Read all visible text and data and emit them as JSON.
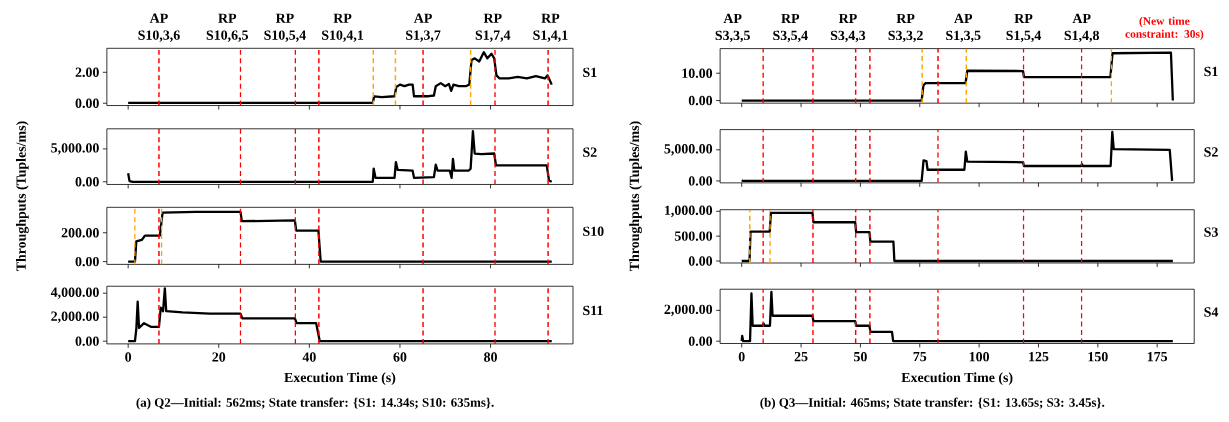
{
  "chart_data": [
    {
      "type": "line",
      "ylabel": "Throughputs (Tuples/ms)",
      "xlim": [
        -4.7,
        98.2
      ],
      "xticks": [
        0,
        20,
        40,
        60,
        80
      ],
      "ylim": [
        -0.15,
        3.55
      ],
      "yticks": [
        {
          "value": 0,
          "label": "0.00"
        },
        {
          "value": 2,
          "label": "2.00"
        }
      ],
      "tick_labels": "y",
      "series": [
        {
          "name": "S1",
          "color": "#000000",
          "x": [
            0,
            54.0,
            54.3,
            56,
            58.8,
            59.2,
            60,
            61,
            62,
            62.8,
            63.1,
            66,
            67.5,
            67.9,
            69,
            70,
            70.8,
            71.3,
            71.8,
            73,
            74.5,
            75.3,
            75.8,
            76.5,
            77.5,
            78.5,
            79.3,
            80.2,
            80.8,
            81.3,
            82,
            84,
            86,
            88,
            90,
            92,
            92.6,
            93.5
          ],
          "values": [
            0.02,
            0.02,
            0.45,
            0.4,
            0.45,
            1.05,
            1.2,
            1.1,
            1.2,
            1.2,
            0.45,
            0.45,
            0.5,
            1.1,
            1.3,
            1.1,
            1.25,
            0.8,
            1.2,
            1.1,
            1.1,
            1.2,
            2.8,
            2.9,
            2.7,
            3.3,
            2.9,
            3.2,
            2.9,
            1.8,
            1.6,
            1.6,
            1.7,
            1.6,
            1.75,
            1.6,
            1.8,
            1.2
          ]
        }
      ],
      "ref_lines": [
        {
          "axis": "x",
          "value": 6.8,
          "label": "AP S10,3,6",
          "color": "#ff0000",
          "line_style": "dashed"
        },
        {
          "axis": "x",
          "value": 24.8,
          "label": "RP S10,6,5",
          "color": "#ff0000",
          "line_style": "dashed"
        },
        {
          "axis": "x",
          "value": 36.9,
          "label": "RP S10,5,4",
          "color": "#ff0000",
          "line_style": "dashed"
        },
        {
          "axis": "x",
          "value": 42.1,
          "label": "RP S10,4,1",
          "color": "#ff0000",
          "line_style": "dashed"
        },
        {
          "axis": "x",
          "value": 65.1,
          "label": "AP S1,3,7",
          "color": "#ff0000",
          "line_style": "dashed"
        },
        {
          "axis": "x",
          "value": 81.0,
          "label": "RP S1,7,4",
          "color": "#ff0000",
          "line_style": "dashed"
        },
        {
          "axis": "x",
          "value": 92.7,
          "label": "RP S1,4,1",
          "color": "#ff0000",
          "line_style": "dashed"
        },
        {
          "axis": "x",
          "value": 54.1,
          "color": "#ffa500",
          "line_style": "dashed"
        },
        {
          "axis": "x",
          "value": 59.0,
          "color": "#ffa500",
          "line_style": "dashed"
        },
        {
          "axis": "x",
          "value": 75.6,
          "color": "#ffa500",
          "line_style": "dashed"
        }
      ]
    },
    {
      "type": "line",
      "xlim": [
        -4.7,
        98.2
      ],
      "xticks": [
        0,
        20,
        40,
        60,
        80
      ],
      "ylim": [
        -410,
        8060
      ],
      "yticks": [
        {
          "value": 0,
          "label": "0.00"
        },
        {
          "value": 5000,
          "label": "5,000.00"
        }
      ],
      "tick_labels": "y",
      "series": [
        {
          "name": "S2",
          "color": "#000000",
          "x": [
            0,
            0.3,
            1,
            54,
            54.2,
            54.6,
            58.8,
            59.1,
            59.5,
            62.8,
            63.1,
            67.5,
            67.9,
            68.3,
            71,
            71.4,
            71.7,
            72,
            75.2,
            75.6,
            76.1,
            76.5,
            78,
            80.8,
            81.2,
            86,
            92.4,
            92.9,
            93.5
          ],
          "values": [
            1300,
            100,
            0,
            0,
            2000,
            600,
            600,
            3000,
            1800,
            1700,
            600,
            700,
            2600,
            1700,
            1700,
            600,
            3500,
            1700,
            1700,
            2000,
            7700,
            4300,
            4200,
            4300,
            2500,
            2500,
            2500,
            200,
            0
          ]
        }
      ],
      "ref_lines": [
        {
          "axis": "x",
          "value": 6.8,
          "color": "#ff0000",
          "line_style": "dashed"
        },
        {
          "axis": "x",
          "value": 24.8,
          "color": "#ff0000",
          "line_style": "dashed"
        },
        {
          "axis": "x",
          "value": 36.9,
          "color": "#ff0000",
          "line_style": "dashed"
        },
        {
          "axis": "x",
          "value": 42.1,
          "color": "#ff0000",
          "line_style": "dashed"
        },
        {
          "axis": "x",
          "value": 65.1,
          "color": "#ff0000",
          "line_style": "dashed"
        },
        {
          "axis": "x",
          "value": 81.0,
          "color": "#ff0000",
          "line_style": "dashed"
        },
        {
          "axis": "x",
          "value": 92.7,
          "color": "#ff0000",
          "line_style": "dashed"
        }
      ]
    },
    {
      "type": "line",
      "xlim": [
        -4.7,
        98.2
      ],
      "xticks": [
        0,
        20,
        40,
        60,
        80
      ],
      "ylim": [
        -19,
        376
      ],
      "yticks": [
        {
          "value": 0,
          "label": "0.00"
        },
        {
          "value": 200,
          "label": "200.00"
        }
      ],
      "tick_labels": "y",
      "series": [
        {
          "name": "S10",
          "color": "#000000",
          "x": [
            0,
            1.5,
            1.8,
            3,
            3.7,
            7,
            7.6,
            15,
            24.8,
            25.1,
            36.8,
            37.1,
            42,
            42.5,
            93.5
          ],
          "values": [
            0,
            0,
            140,
            150,
            180,
            180,
            340,
            345,
            345,
            280,
            285,
            215,
            215,
            0,
            0
          ]
        }
      ],
      "ref_lines": [
        {
          "axis": "x",
          "value": 6.8,
          "color": "#ff0000",
          "line_style": "dashed"
        },
        {
          "axis": "x",
          "value": 24.8,
          "color": "#ff0000",
          "line_style": "dashed"
        },
        {
          "axis": "x",
          "value": 36.9,
          "color": "#ff0000",
          "line_style": "dashed"
        },
        {
          "axis": "x",
          "value": 42.1,
          "color": "#ff0000",
          "line_style": "dashed"
        },
        {
          "axis": "x",
          "value": 65.1,
          "color": "#ff0000",
          "line_style": "dashed"
        },
        {
          "axis": "x",
          "value": 81.0,
          "color": "#ff0000",
          "line_style": "dashed"
        },
        {
          "axis": "x",
          "value": 92.7,
          "color": "#ff0000",
          "line_style": "dashed"
        },
        {
          "axis": "x",
          "value": 1.5,
          "color": "#ffa500",
          "line_style": "dashed"
        },
        {
          "axis": "x",
          "value": 7.4,
          "color": "#ffa500",
          "line_style": "dashed"
        }
      ]
    },
    {
      "type": "line",
      "xlabel": "Execution Time (s)",
      "annotations": [
        "(a) Q2—Initial: 562ms; State transfer: {S1: 14.34s; S10: 635ms}."
      ],
      "xlim": [
        -4.7,
        98.2
      ],
      "xticks": [
        0,
        20,
        40,
        60,
        80
      ],
      "ylim": [
        -226,
        4580
      ],
      "yticks": [
        {
          "value": 0,
          "label": "0.00"
        },
        {
          "value": 2000,
          "label": "2,000.00"
        },
        {
          "value": 4000,
          "label": "4,000.00"
        }
      ],
      "series": [
        {
          "name": "S11",
          "color": "#000000",
          "x": [
            0,
            1.5,
            1.8,
            2.1,
            2.4,
            3.5,
            5,
            6.8,
            7.2,
            7.7,
            8.1,
            8.4,
            12,
            18,
            24.8,
            25.2,
            30,
            36.8,
            37.2,
            41.5,
            42.3,
            93.5
          ],
          "values": [
            0,
            0,
            1000,
            3300,
            1100,
            1500,
            1200,
            1200,
            2800,
            2500,
            4400,
            2500,
            2400,
            2300,
            2300,
            1900,
            1900,
            1900,
            1500,
            1500,
            0,
            0
          ]
        }
      ],
      "ref_lines": [
        {
          "axis": "x",
          "value": 6.8,
          "color": "#ff0000",
          "line_style": "dashed"
        },
        {
          "axis": "x",
          "value": 24.8,
          "color": "#ff0000",
          "line_style": "dashed"
        },
        {
          "axis": "x",
          "value": 36.9,
          "color": "#ff0000",
          "line_style": "dashed"
        },
        {
          "axis": "x",
          "value": 42.1,
          "color": "#ff0000",
          "line_style": "dashed"
        },
        {
          "axis": "x",
          "value": 65.1,
          "color": "#ff0000",
          "line_style": "dashed"
        },
        {
          "axis": "x",
          "value": 81.0,
          "color": "#ff0000",
          "line_style": "dashed"
        },
        {
          "axis": "x",
          "value": 92.7,
          "color": "#ff0000",
          "line_style": "dashed"
        }
      ]
    },
    {
      "type": "line",
      "ylabel": "Throughputs (Tuples/ms)",
      "annotations": [
        "(New time constraint: 30s)"
      ],
      "xlim": [
        -9.1,
        190.6
      ],
      "xticks": [
        0,
        25,
        50,
        75,
        100,
        125,
        150,
        175
      ],
      "ylim": [
        -0.95,
        19.0
      ],
      "yticks": [
        {
          "value": 0,
          "label": "0.00"
        },
        {
          "value": 10,
          "label": "10.00"
        }
      ],
      "tick_labels": "y",
      "series": [
        {
          "name": "S1",
          "color": "#000000",
          "x": [
            0,
            75.8,
            76.5,
            77.5,
            94.3,
            95,
            118.5,
            118.9,
            155.3,
            156.2,
            180.8,
            181.6
          ],
          "values": [
            0,
            0,
            5.5,
            6.4,
            6.4,
            10.9,
            10.8,
            8.6,
            8.6,
            17.3,
            17.5,
            0
          ]
        }
      ],
      "ref_lines": [
        {
          "axis": "x",
          "value": 9.0,
          "label": "AP S3,3,5",
          "color": "#ff0000",
          "line_style": "dashed"
        },
        {
          "axis": "x",
          "value": 30.0,
          "label": "RP S3,5,4",
          "color": "#ff0000",
          "line_style": "dashed"
        },
        {
          "axis": "x",
          "value": 48.0,
          "label": "RP S3,4,3",
          "color": "#ff0000",
          "line_style": "dashed"
        },
        {
          "axis": "x",
          "value": 54.0,
          "label": "RP S3,3,2",
          "color": "#ff0000",
          "line_style": "dashed"
        },
        {
          "axis": "x",
          "value": 82.7,
          "label": "AP S1,3,5",
          "color": "#ff0000",
          "line_style": "dashed"
        },
        {
          "axis": "x",
          "value": 118.7,
          "label": "RP S1,5,4",
          "color": "#ff0000",
          "line_style": "dashed"
        },
        {
          "axis": "x",
          "value": 143.2,
          "label": "AP S1,4,8",
          "color": "#ff0000",
          "line_style": "dashed"
        },
        {
          "axis": "x",
          "value": 76.0,
          "color": "#ffa500",
          "line_style": "dashed"
        },
        {
          "axis": "x",
          "value": 94.6,
          "color": "#ffa500",
          "line_style": "dashed"
        },
        {
          "axis": "x",
          "value": 155.7,
          "color": "#ffa500",
          "line_style": "dashed"
        }
      ]
    },
    {
      "type": "line",
      "xlim": [
        -9.1,
        190.6
      ],
      "xticks": [
        0,
        25,
        50,
        75,
        100,
        125,
        150,
        175
      ],
      "ylim": [
        -310,
        8250
      ],
      "yticks": [
        {
          "value": 0,
          "label": "0.00"
        },
        {
          "value": 5000,
          "label": "5,000.00"
        }
      ],
      "tick_labels": "y",
      "series": [
        {
          "name": "S2",
          "color": "#000000",
          "x": [
            0,
            0.5,
            75.8,
            76.6,
            77.8,
            78.3,
            93.8,
            94.4,
            95,
            118.5,
            118.9,
            143,
            143.3,
            143.7,
            155.4,
            156.1,
            156.7,
            180.3,
            181.3
          ],
          "values": [
            100,
            0,
            0,
            3300,
            3200,
            1800,
            1800,
            4700,
            3100,
            3000,
            2400,
            2400,
            2700,
            2400,
            2400,
            7900,
            5100,
            5000,
            0
          ]
        }
      ],
      "ref_lines": [
        {
          "axis": "x",
          "value": 9.0,
          "color": "#ff0000",
          "line_style": "dashed"
        },
        {
          "axis": "x",
          "value": 30.0,
          "color": "#ff0000",
          "line_style": "dashed"
        },
        {
          "axis": "x",
          "value": 48.0,
          "color": "#ff0000",
          "line_style": "dashed"
        },
        {
          "axis": "x",
          "value": 54.0,
          "color": "#ff0000",
          "line_style": "dashed"
        },
        {
          "axis": "x",
          "value": 82.7,
          "color": "#ff0000",
          "line_style": "dashed"
        },
        {
          "axis": "x",
          "value": 118.7,
          "color": "#ff0000",
          "line_style": "dashed"
        },
        {
          "axis": "x",
          "value": 143.2,
          "color": "#ff0000",
          "line_style": "dashed"
        }
      ]
    },
    {
      "type": "line",
      "xlim": [
        -9.1,
        190.6
      ],
      "xticks": [
        0,
        25,
        50,
        75,
        100,
        125,
        150,
        175
      ],
      "ylim": [
        -40,
        1032
      ],
      "yticks": [
        {
          "value": 0,
          "label": "0.00"
        },
        {
          "value": 500,
          "label": "500.00"
        },
        {
          "value": 1000,
          "label": "1,000.00"
        }
      ],
      "tick_labels": "y",
      "series": [
        {
          "name": "S3",
          "color": "#000000",
          "x": [
            0,
            3.3,
            3.7,
            11.8,
            12.3,
            29.8,
            30.2,
            47.8,
            48.2,
            53.8,
            54.2,
            63.9,
            64.3,
            181.6
          ],
          "values": [
            0,
            0,
            590,
            590,
            970,
            970,
            780,
            780,
            580,
            580,
            390,
            390,
            0,
            0
          ]
        }
      ],
      "ref_lines": [
        {
          "axis": "x",
          "value": 9.0,
          "color": "#ff0000",
          "line_style": "dashed"
        },
        {
          "axis": "x",
          "value": 30.0,
          "color": "#ff0000",
          "line_style": "dashed"
        },
        {
          "axis": "x",
          "value": 48.0,
          "color": "#ff0000",
          "line_style": "dashed"
        },
        {
          "axis": "x",
          "value": 54.0,
          "color": "#ff0000",
          "line_style": "dashed"
        },
        {
          "axis": "x",
          "value": 82.7,
          "color": "#ff0000",
          "line_style": "dashed"
        },
        {
          "axis": "x",
          "value": 118.7,
          "color": "#ff0000",
          "line_style": "dashed"
        },
        {
          "axis": "x",
          "value": 143.2,
          "color": "#ff0000",
          "line_style": "dashed"
        },
        {
          "axis": "x",
          "value": 3.4,
          "color": "#ffa500",
          "line_style": "dashed"
        },
        {
          "axis": "x",
          "value": 11.9,
          "color": "#ffa500",
          "line_style": "dashed"
        }
      ]
    },
    {
      "type": "line",
      "xlabel": "Execution Time (s)",
      "annotations": [
        "(b) Q3—Initial: 465ms; State transfer: {S1: 13.65s; S3: 3.45s}."
      ],
      "xlim": [
        -9.1,
        190.6
      ],
      "xticks": [
        0,
        25,
        50,
        75,
        100,
        125,
        150,
        175
      ],
      "ylim": [
        -150,
        3370
      ],
      "yticks": [
        {
          "value": 0,
          "label": "0.00"
        },
        {
          "value": 2000,
          "label": "2,000.00"
        }
      ],
      "series": [
        {
          "name": "S4",
          "color": "#000000",
          "x": [
            0,
            0.2,
            0.6,
            3.5,
            4.1,
            4.6,
            8.8,
            9.2,
            9.6,
            11.9,
            12.5,
            13,
            20,
            29.8,
            30.2,
            47.8,
            48.2,
            53.8,
            54.2,
            63.3,
            63.8,
            181.6
          ],
          "values": [
            0,
            350,
            0,
            0,
            3100,
            1000,
            1000,
            1150,
            1000,
            1000,
            3200,
            1650,
            1650,
            1650,
            1300,
            1300,
            1000,
            1000,
            600,
            600,
            0,
            0
          ]
        }
      ],
      "ref_lines": [
        {
          "axis": "x",
          "value": 9.0,
          "color": "#ff0000",
          "line_style": "dashed"
        },
        {
          "axis": "x",
          "value": 30.0,
          "color": "#ff0000",
          "line_style": "dashed"
        },
        {
          "axis": "x",
          "value": 48.0,
          "color": "#ff0000",
          "line_style": "dashed"
        },
        {
          "axis": "x",
          "value": 54.0,
          "color": "#ff0000",
          "line_style": "dashed"
        },
        {
          "axis": "x",
          "value": 82.7,
          "color": "#ff0000",
          "line_style": "dashed"
        },
        {
          "axis": "x",
          "value": 118.7,
          "color": "#ff0000",
          "line_style": "dashed"
        },
        {
          "axis": "x",
          "value": 143.2,
          "color": "#ff0000",
          "line_style": "dashed"
        }
      ]
    }
  ]
}
